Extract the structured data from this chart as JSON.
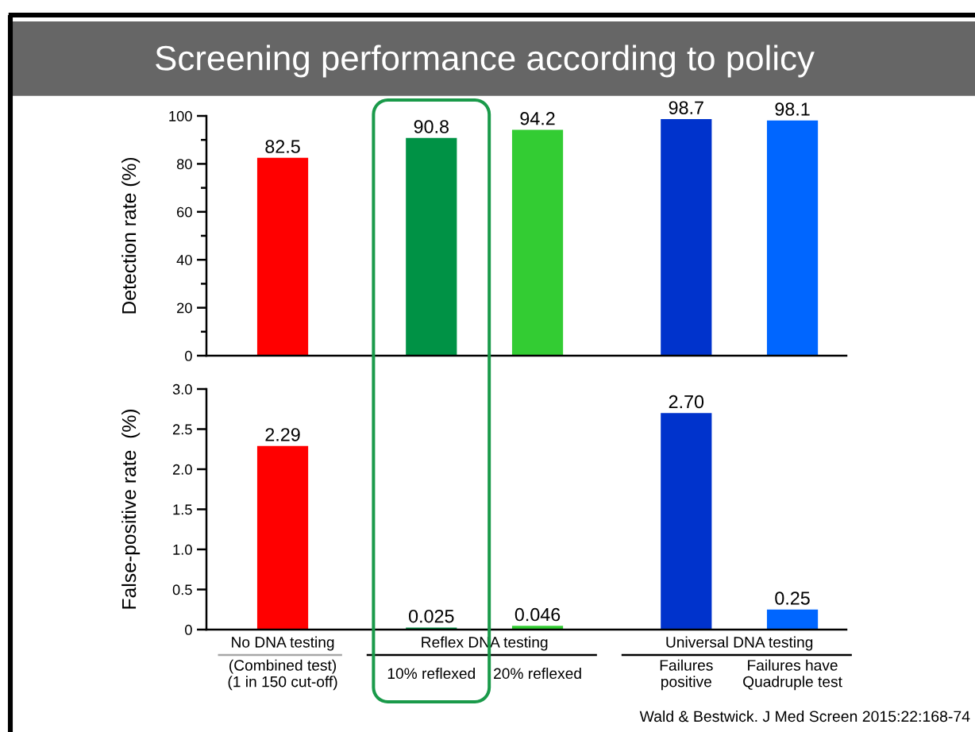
{
  "chart_data": [
    {
      "type": "bar",
      "title": "Screening performance according to policy",
      "categories": [
        null,
        null,
        null,
        null,
        null
      ],
      "values": [
        82.5,
        90.8,
        94.2,
        98.7,
        98.1
      ],
      "colors": [
        "#ff0000",
        "#009245",
        "#33cc33",
        "#0033cc",
        "#0066ff"
      ],
      "ylabel": "Detection rate (%)",
      "ylim": [
        0,
        100
      ],
      "yticks": [
        0,
        {
          "value": 10,
          "label": null
        },
        20,
        {
          "value": 30,
          "label": null
        },
        40,
        {
          "value": 50,
          "label": null
        },
        60,
        {
          "value": 70,
          "label": null
        },
        80,
        {
          "value": 90,
          "label": null
        },
        100
      ],
      "data_labels": true,
      "tick_labels": "y"
    },
    {
      "type": "bar",
      "categories": [
        "(Combined test)\n(1 in 150 cut-off)",
        "10% reflexed",
        "20% reflexed",
        "Failures\npositive",
        "Failures have\nQuadruple test"
      ],
      "values": [
        2.29,
        0.025,
        0.046,
        2.7,
        0.25
      ],
      "value_labels": [
        "2.29",
        "0.025",
        "0.046",
        "2.70",
        "0.25"
      ],
      "colors": [
        "#ff0000",
        "#009245",
        "#33cc33",
        "#0033cc",
        "#0066ff"
      ],
      "ylabel": "False-positive rate  (%)",
      "ylim": [
        0,
        3
      ],
      "yticks": [
        0,
        0.5,
        {
          "value": 1,
          "label": "1.0"
        },
        1.5,
        {
          "value": 2,
          "label": "2.0"
        },
        2.5,
        {
          "value": 3,
          "label": "3.0"
        }
      ],
      "bands": [
        {
          "axis": "x",
          "from": "10% reflexed",
          "to": "10% reflexed",
          "color": "#1a9a4a"
        }
      ],
      "annotations": [
        "No DNA testing",
        "Reflex DNA testing",
        "Universal DNA testing",
        "Wald & Bestwick. J Med Screen 2015:22:168-74"
      ]
    }
  ]
}
